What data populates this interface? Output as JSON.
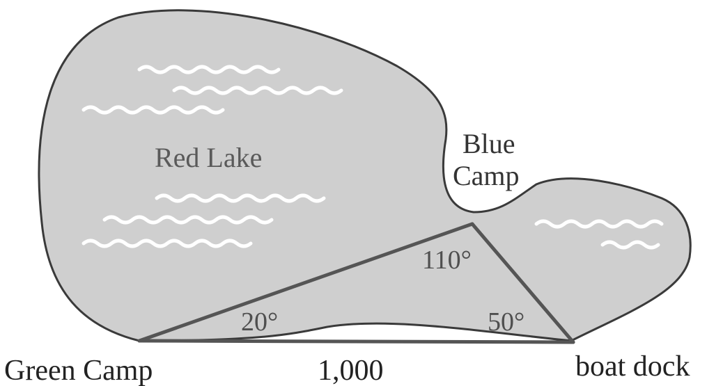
{
  "lake": {
    "name": "Red Lake",
    "fill_color": "#cfcfcf",
    "outline_color": "#3a3a3a",
    "wave_color": "#ffffff"
  },
  "points": {
    "green_camp": "Green Camp",
    "blue_camp_line1": "Blue",
    "blue_camp_line2": "Camp",
    "boat_dock": "boat dock"
  },
  "angles": {
    "green_camp": "20°",
    "blue_camp": "110°",
    "boat_dock": "50°"
  },
  "distance": {
    "green_camp_to_boat_dock": "1,000"
  },
  "triangle_color": "#555555"
}
